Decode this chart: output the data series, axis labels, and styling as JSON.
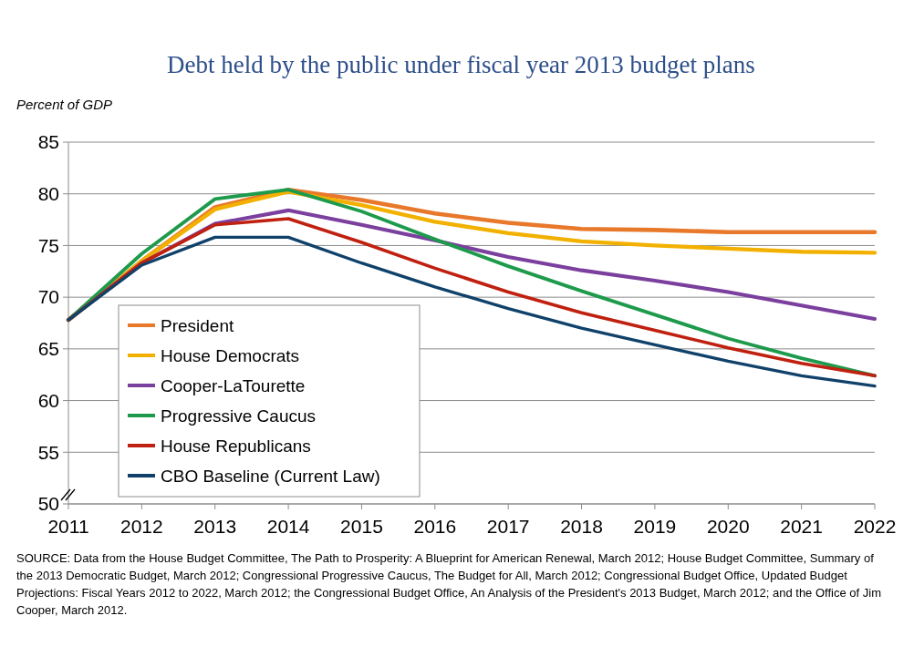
{
  "chart_data": {
    "type": "line",
    "title": "Debt held by the public under fiscal year 2013 budget plans",
    "ylabel": "Percent of GDP",
    "x": [
      2011,
      2012,
      2013,
      2014,
      2015,
      2016,
      2017,
      2018,
      2019,
      2020,
      2021,
      2022
    ],
    "series": [
      {
        "name": "President",
        "color": "#e8782a",
        "values": [
          67.8,
          73.5,
          78.7,
          80.4,
          79.4,
          78.1,
          77.2,
          76.6,
          76.5,
          76.3,
          76.3,
          76.3
        ]
      },
      {
        "name": "House Democrats",
        "color": "#f2b100",
        "values": [
          67.8,
          73.5,
          78.5,
          80.2,
          78.9,
          77.3,
          76.2,
          75.4,
          75.0,
          74.7,
          74.4,
          74.3
        ]
      },
      {
        "name": "Cooper-LaTourette",
        "color": "#7b3f9e",
        "values": [
          67.8,
          73.3,
          77.1,
          78.4,
          77.0,
          75.5,
          73.9,
          72.6,
          71.6,
          70.5,
          69.2,
          67.9
        ]
      },
      {
        "name": "Progressive Caucus",
        "color": "#1e9a4c",
        "values": [
          67.8,
          74.2,
          79.5,
          80.4,
          78.3,
          75.6,
          73.0,
          70.6,
          68.3,
          66.0,
          64.1,
          62.4
        ]
      },
      {
        "name": "House Republicans",
        "color": "#c0200f",
        "values": [
          67.8,
          73.3,
          77.0,
          77.6,
          75.3,
          72.8,
          70.5,
          68.5,
          66.8,
          65.1,
          63.6,
          62.4
        ]
      },
      {
        "name": "CBO Baseline (Current Law)",
        "color": "#10416a",
        "values": [
          67.8,
          73.1,
          75.8,
          75.8,
          73.3,
          71.0,
          68.9,
          67.0,
          65.4,
          63.8,
          62.4,
          61.4
        ]
      }
    ],
    "xlim": [
      2011,
      2022
    ],
    "xticks": [
      2011,
      2012,
      2013,
      2014,
      2015,
      2016,
      2017,
      2018,
      2019,
      2020,
      2021,
      2022
    ],
    "ylim": [
      50,
      85
    ],
    "yticks": [
      50,
      55,
      60,
      65,
      70,
      75,
      80,
      85
    ],
    "grid": "y",
    "legend": "bottom left",
    "marker": "none",
    "line_style": "solid",
    "annotations": [
      "SOURCE: Data from the House Budget Committee, The Path to Prosperity: A Blueprint for American Renewal, March 2012; House Budget Committee, Summary of the 2013 Democratic Budget, March 2012; Congressional Progressive Caucus, The Budget for All, March 2012; Congressional Budget Office, Updated Budget Projections: Fiscal Years 2012 to 2022, March 2012; the Congressional Budget Office, An Analysis of the President's 2013 Budget, March 2012; and the Office of Jim Cooper, March 2012."
    ]
  }
}
